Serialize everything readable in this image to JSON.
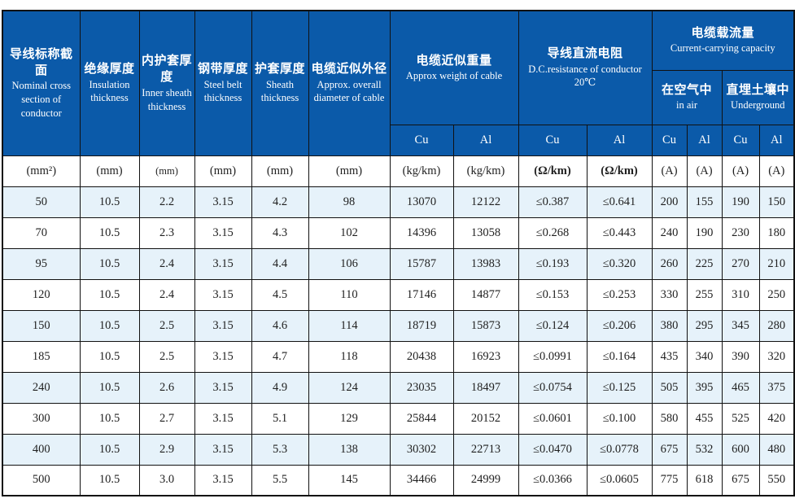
{
  "colors": {
    "header_blue": "#0b5aa9",
    "stripe_blue": "#e6f2fa",
    "border_black": "#111111",
    "header_text": "#ffffff",
    "body_text": "#1f1f1f"
  },
  "table": {
    "header": {
      "nominal_section": {
        "zh": "导线标称截面",
        "en": "Nominal cross section of conductor"
      },
      "insulation": {
        "zh": "绝缘厚度",
        "en": "Insulation thickness"
      },
      "inner_sheath": {
        "zh": "内护套厚度",
        "en": "Inner sheath thickness"
      },
      "steel_belt": {
        "zh": "钢带厚度",
        "en": "Steel belt thickness"
      },
      "sheath": {
        "zh": "护套厚度",
        "en": "Sheath thickness"
      },
      "diameter": {
        "zh": "电缆近似外径",
        "en": "Approx. overall diameter of cable"
      },
      "weight": {
        "zh": "电缆近似重量",
        "en": "Approx weight of cable"
      },
      "resistance": {
        "zh": "导线直流电阻",
        "en": "D.C.resistance of conductor",
        "temp": "20℃"
      },
      "capacity": {
        "zh": "电缆载流量",
        "en": "Current-carrying capacity"
      },
      "in_air": {
        "zh": "在空气中",
        "en": "in air"
      },
      "underground": {
        "zh": "直埋土壤中",
        "en": "Underground"
      },
      "cu": "Cu",
      "al": "Al"
    },
    "units": [
      "(mm²)",
      "(mm)",
      "(mm)",
      "(mm)",
      "(mm)",
      "(mm)",
      "(kg/km)",
      "(kg/km)",
      "(Ω/km)",
      "(Ω/km)",
      "(A)",
      "(A)",
      "(A)",
      "(A)"
    ],
    "rows": [
      [
        "50",
        "10.5",
        "2.2",
        "3.15",
        "4.2",
        "98",
        "13070",
        "12122",
        "≤0.387",
        "≤0.641",
        "200",
        "155",
        "190",
        "150"
      ],
      [
        "70",
        "10.5",
        "2.3",
        "3.15",
        "4.3",
        "102",
        "14396",
        "13058",
        "≤0.268",
        "≤0.443",
        "240",
        "190",
        "230",
        "180"
      ],
      [
        "95",
        "10.5",
        "2.4",
        "3.15",
        "4.4",
        "106",
        "15787",
        "13983",
        "≤0.193",
        "≤0.320",
        "260",
        "225",
        "270",
        "210"
      ],
      [
        "120",
        "10.5",
        "2.4",
        "3.15",
        "4.5",
        "110",
        "17146",
        "14877",
        "≤0.153",
        "≤0.253",
        "330",
        "255",
        "310",
        "250"
      ],
      [
        "150",
        "10.5",
        "2.5",
        "3.15",
        "4.6",
        "114",
        "18719",
        "15873",
        "≤0.124",
        "≤0.206",
        "380",
        "295",
        "345",
        "280"
      ],
      [
        "185",
        "10.5",
        "2.5",
        "3.15",
        "4.7",
        "118",
        "20438",
        "16923",
        "≤0.0991",
        "≤0.164",
        "435",
        "340",
        "390",
        "320"
      ],
      [
        "240",
        "10.5",
        "2.6",
        "3.15",
        "4.9",
        "124",
        "23035",
        "18497",
        "≤0.0754",
        "≤0.125",
        "505",
        "395",
        "465",
        "375"
      ],
      [
        "300",
        "10.5",
        "2.7",
        "3.15",
        "5.1",
        "129",
        "25844",
        "20152",
        "≤0.0601",
        "≤0.100",
        "580",
        "455",
        "525",
        "420"
      ],
      [
        "400",
        "10.5",
        "2.9",
        "3.15",
        "5.3",
        "138",
        "30302",
        "22713",
        "≤0.0470",
        "≤0.0778",
        "675",
        "532",
        "600",
        "480"
      ],
      [
        "500",
        "10.5",
        "3.0",
        "3.15",
        "5.5",
        "145",
        "34466",
        "24999",
        "≤0.0366",
        "≤0.0605",
        "775",
        "618",
        "675",
        "550"
      ]
    ]
  }
}
